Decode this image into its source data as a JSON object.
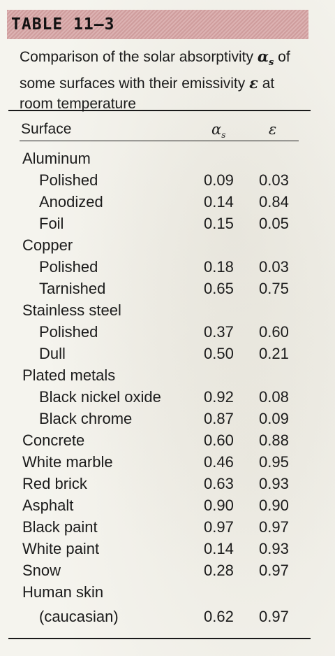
{
  "table": {
    "label": "TABLE 11–3",
    "caption_part1": "Comparison of the solar absorptivity ",
    "caption_symbol1": "α",
    "caption_symbol1_sub": "s",
    "caption_part2": " of some surfaces with their emissivity ",
    "caption_symbol2": "ε",
    "caption_part3": " at room temperature",
    "headers": {
      "surface": "Surface",
      "alpha": "α",
      "alpha_sub": "s",
      "epsilon": "ε"
    },
    "rows": [
      {
        "name": "Aluminum",
        "level": 0,
        "alpha": "",
        "epsilon": ""
      },
      {
        "name": "Polished",
        "level": 1,
        "alpha": "0.09",
        "epsilon": "0.03"
      },
      {
        "name": "Anodized",
        "level": 1,
        "alpha": "0.14",
        "epsilon": "0.84"
      },
      {
        "name": "Foil",
        "level": 1,
        "alpha": "0.15",
        "epsilon": "0.05"
      },
      {
        "name": "Copper",
        "level": 0,
        "alpha": "",
        "epsilon": ""
      },
      {
        "name": "Polished",
        "level": 1,
        "alpha": "0.18",
        "epsilon": "0.03"
      },
      {
        "name": "Tarnished",
        "level": 1,
        "alpha": "0.65",
        "epsilon": "0.75"
      },
      {
        "name": "Stainless steel",
        "level": 0,
        "alpha": "",
        "epsilon": ""
      },
      {
        "name": "Polished",
        "level": 1,
        "alpha": "0.37",
        "epsilon": "0.60"
      },
      {
        "name": "Dull",
        "level": 1,
        "alpha": "0.50",
        "epsilon": "0.21"
      },
      {
        "name": "Plated metals",
        "level": 0,
        "alpha": "",
        "epsilon": ""
      },
      {
        "name": "Black nickel oxide",
        "level": 1,
        "alpha": "0.92",
        "epsilon": "0.08"
      },
      {
        "name": "Black chrome",
        "level": 1,
        "alpha": "0.87",
        "epsilon": "0.09"
      },
      {
        "name": "Concrete",
        "level": 0,
        "alpha": "0.60",
        "epsilon": "0.88"
      },
      {
        "name": "White marble",
        "level": 0,
        "alpha": "0.46",
        "epsilon": "0.95"
      },
      {
        "name": "Red brick",
        "level": 0,
        "alpha": "0.63",
        "epsilon": "0.93"
      },
      {
        "name": "Asphalt",
        "level": 0,
        "alpha": "0.90",
        "epsilon": "0.90"
      },
      {
        "name": "Black paint",
        "level": 0,
        "alpha": "0.97",
        "epsilon": "0.97"
      },
      {
        "name": "White paint",
        "level": 0,
        "alpha": "0.14",
        "epsilon": "0.93"
      },
      {
        "name": "Snow",
        "level": 0,
        "alpha": "0.28",
        "epsilon": "0.97"
      },
      {
        "name": "Human skin",
        "level": 0,
        "alpha": "",
        "epsilon": ""
      },
      {
        "name": "(caucasian)",
        "level": 1,
        "alpha": "0.62",
        "epsilon": "0.97"
      }
    ]
  },
  "colors": {
    "title_bar": "#d4a6a6",
    "paper": "#f5f4ee",
    "text": "#1b1b1b"
  }
}
